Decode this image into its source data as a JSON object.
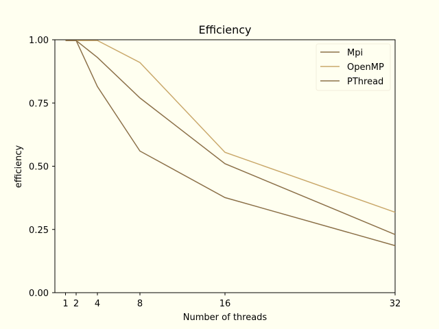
{
  "colors": {
    "background": "#fffff0",
    "axes": "#000000",
    "legend_border": "#f2eedc"
  },
  "chart_data": {
    "type": "line",
    "title": "Efficiency",
    "xlabel": "Number of threads",
    "ylabel": "efficiency",
    "x": [
      1,
      2,
      4,
      8,
      16,
      32
    ],
    "xticks": [
      1,
      2,
      4,
      8,
      16,
      32
    ],
    "xlim": [
      0,
      32
    ],
    "yticks": [
      0.0,
      0.25,
      0.5,
      0.75,
      1.0
    ],
    "ytick_labels": [
      "0.00",
      "0.25",
      "0.50",
      "0.75",
      "1.00"
    ],
    "ylim": [
      0,
      1
    ],
    "grid": false,
    "legend_position": "top-right",
    "series": [
      {
        "name": "Mpi",
        "color": "#8b7048",
        "values": [
          0.997,
          0.997,
          0.93,
          0.77,
          0.51,
          0.23
        ]
      },
      {
        "name": "OpenMP",
        "color": "#c9a86a",
        "values": [
          0.997,
          0.997,
          0.997,
          0.91,
          0.555,
          0.318
        ]
      },
      {
        "name": "PThread",
        "color": "#8b7048",
        "values": [
          0.997,
          0.997,
          0.815,
          0.56,
          0.376,
          0.186
        ]
      }
    ]
  }
}
